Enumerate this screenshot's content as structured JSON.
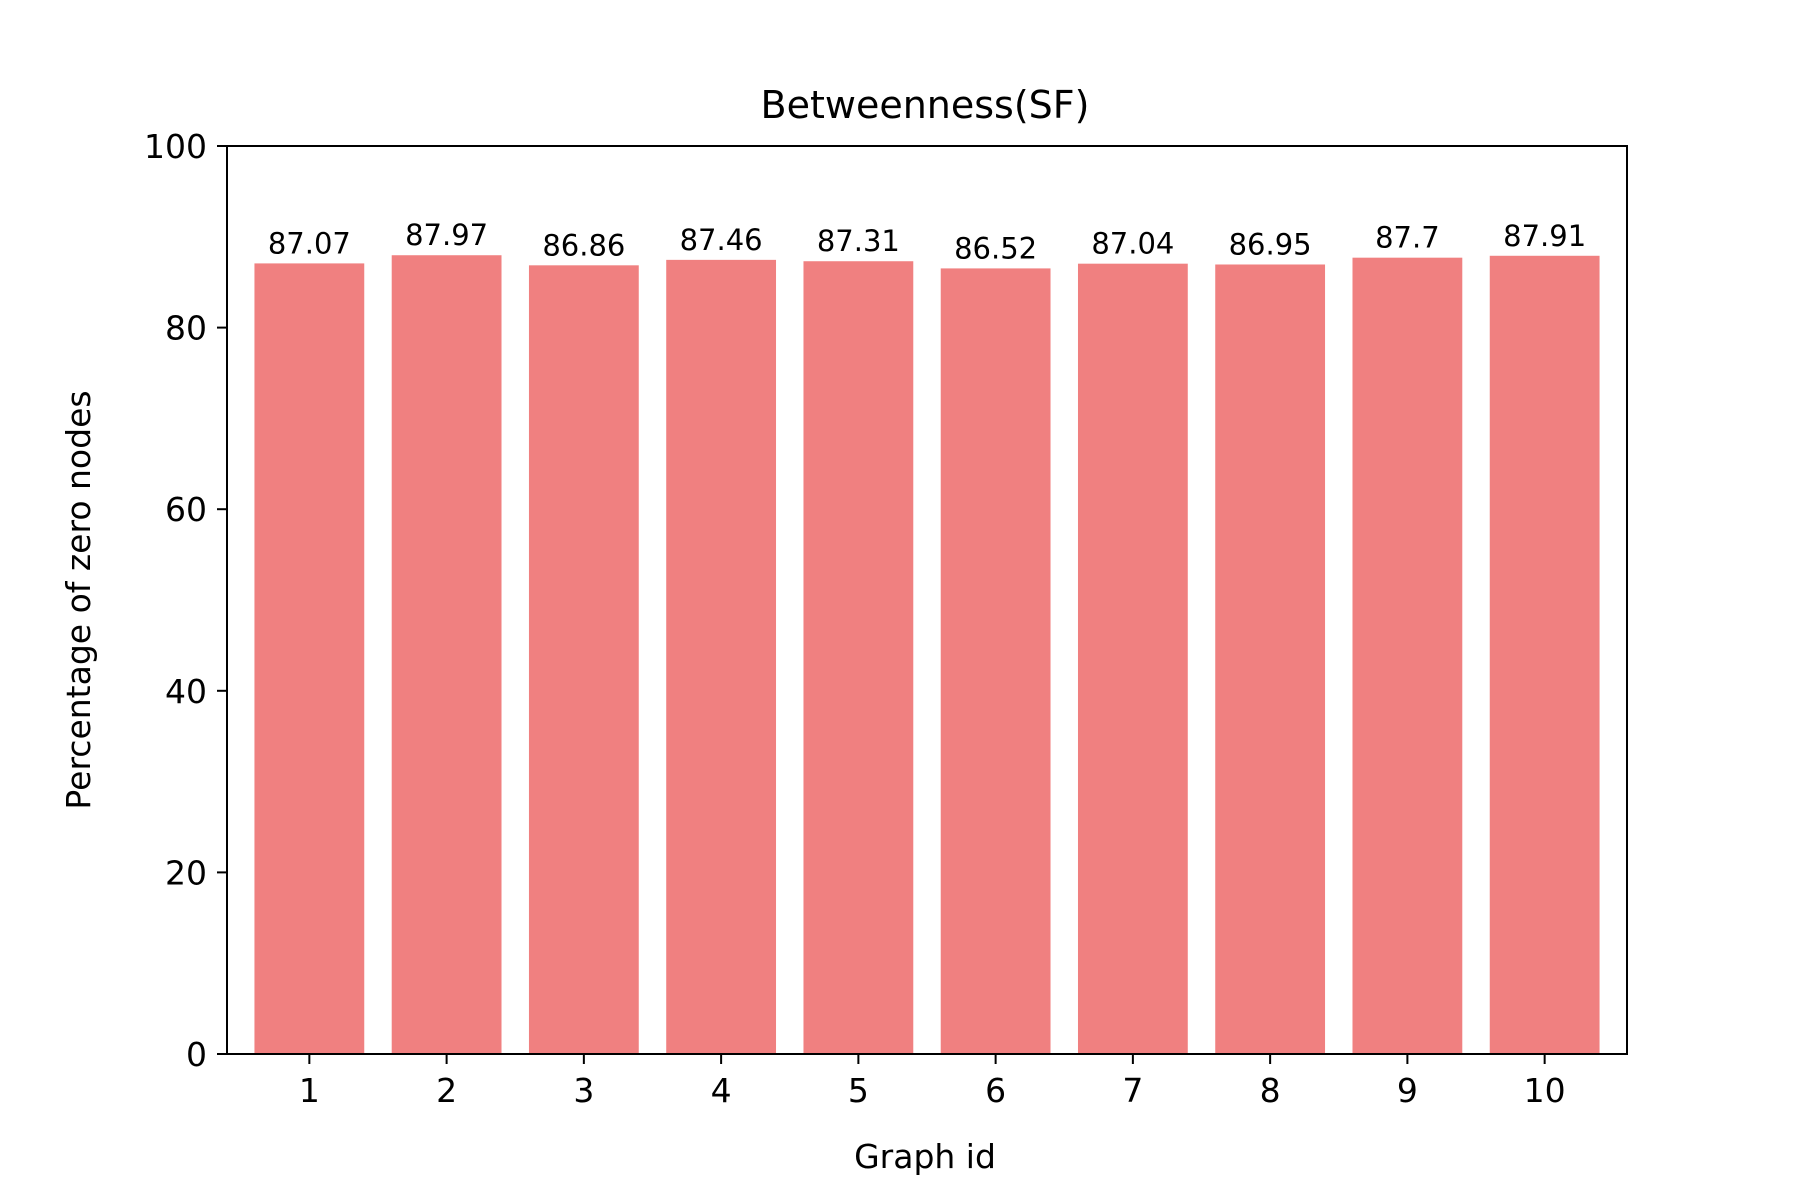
{
  "chart_data": {
    "type": "bar",
    "title": "Betweenness(SF)",
    "xlabel": "Graph id",
    "ylabel": "Percentage of zero nodes",
    "categories": [
      "1",
      "2",
      "3",
      "4",
      "5",
      "6",
      "7",
      "8",
      "9",
      "10"
    ],
    "values": [
      87.07,
      87.97,
      86.86,
      87.46,
      87.31,
      86.52,
      87.04,
      86.95,
      87.7,
      87.91
    ],
    "data_labels": [
      "87.07",
      "87.97",
      "86.86",
      "87.46",
      "87.31",
      "86.52",
      "87.04",
      "86.95",
      "87.7",
      "87.91"
    ],
    "ylim": [
      0,
      100
    ],
    "yticks": [
      0,
      20,
      40,
      60,
      80,
      100
    ],
    "ytick_labels": [
      "0",
      "20",
      "40",
      "60",
      "80",
      "100"
    ],
    "grid": false,
    "legend": "none",
    "bar_color": "#f08080",
    "axis_color": "#000000"
  }
}
